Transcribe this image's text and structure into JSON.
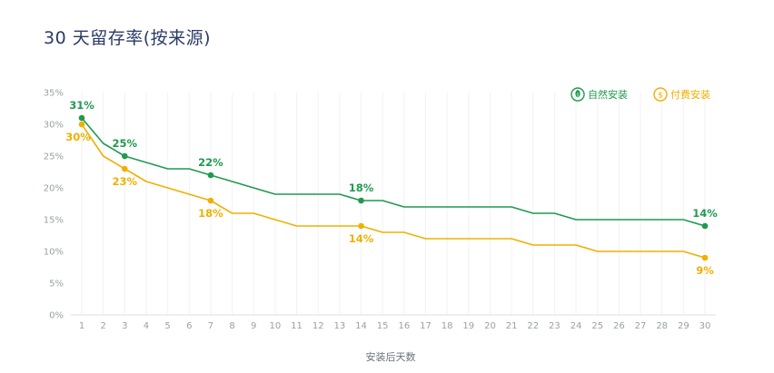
{
  "title": "30 天留存率(按来源)",
  "chart_data": {
    "type": "line",
    "title": "30 天留存率(按来源)",
    "xlabel": "安装后天数",
    "ylabel": "",
    "ylim": [
      0,
      35
    ],
    "yticks": [
      0,
      5,
      10,
      15,
      20,
      25,
      30,
      35
    ],
    "ytick_labels": [
      "0%",
      "5%",
      "10%",
      "15%",
      "20%",
      "25%",
      "30%",
      "35%"
    ],
    "x": [
      1,
      2,
      3,
      4,
      5,
      6,
      7,
      8,
      9,
      10,
      11,
      12,
      13,
      14,
      15,
      16,
      17,
      18,
      19,
      20,
      21,
      22,
      23,
      24,
      25,
      26,
      27,
      28,
      29,
      30
    ],
    "x_tick_labels": [
      "1",
      "2",
      "3",
      "4",
      "5",
      "6",
      "7",
      "8",
      "9",
      "10",
      "11",
      "12",
      "13",
      "14",
      "15",
      "16",
      "17",
      "18",
      "19",
      "20",
      "21",
      "22",
      "23",
      "24",
      "25",
      "26",
      "27",
      "28",
      "29",
      "30"
    ],
    "series": [
      {
        "name": "自然安装",
        "color": "#1f9a4e",
        "icon": "leaf-icon",
        "values": [
          31,
          27,
          25,
          24,
          23,
          23,
          22,
          21,
          20,
          19,
          19,
          19,
          19,
          18,
          18,
          17,
          17,
          17,
          17,
          17,
          17,
          16,
          16,
          15,
          15,
          15,
          15,
          15,
          15,
          14
        ],
        "markers": [
          1,
          3,
          7,
          14,
          30
        ],
        "labels": [
          {
            "day": 1,
            "text": "31%"
          },
          {
            "day": 3,
            "text": "25%"
          },
          {
            "day": 7,
            "text": "22%"
          },
          {
            "day": 14,
            "text": "18%"
          },
          {
            "day": 30,
            "text": "14%"
          }
        ]
      },
      {
        "name": "付费安装",
        "color": "#f0b000",
        "icon": "dollar-coin-icon",
        "values": [
          30,
          25,
          23,
          21,
          20,
          19,
          18,
          16,
          16,
          15,
          14,
          14,
          14,
          14,
          13,
          13,
          12,
          12,
          12,
          12,
          12,
          11,
          11,
          11,
          10,
          10,
          10,
          10,
          10,
          9
        ],
        "markers": [
          1,
          3,
          7,
          14,
          30
        ],
        "labels": [
          {
            "day": 1,
            "text": "30%"
          },
          {
            "day": 3,
            "text": "23%"
          },
          {
            "day": 7,
            "text": "18%"
          },
          {
            "day": 14,
            "text": "14%"
          },
          {
            "day": 30,
            "text": "9%"
          }
        ]
      }
    ],
    "legend": "top-right",
    "grid": true
  }
}
